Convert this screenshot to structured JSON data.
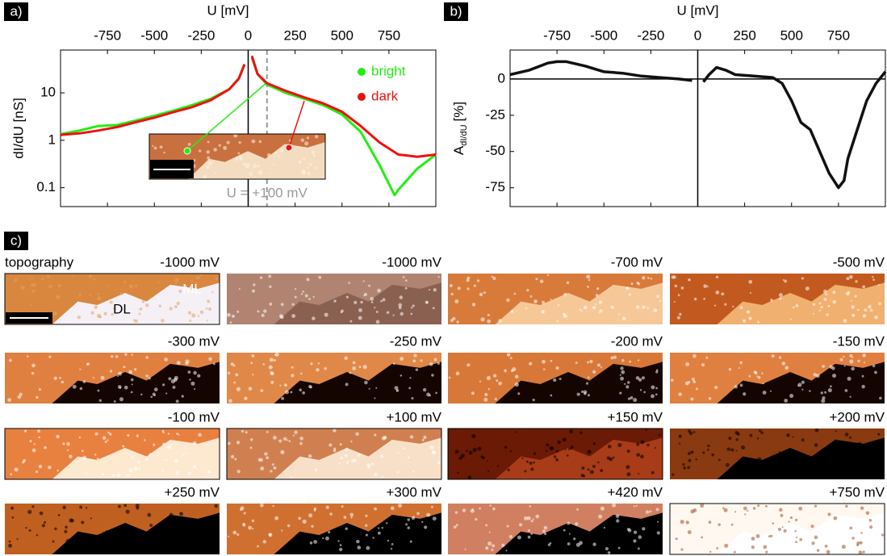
{
  "chart_data": [
    {
      "type": "line",
      "panel_label": "a)",
      "x_label": "U [mV]",
      "y_label": "dI/dU [nS]",
      "y_scale": "log",
      "xlim": [
        -1000,
        1000
      ],
      "xticks": [
        -750,
        -500,
        -250,
        0,
        250,
        500,
        750
      ],
      "ylim": [
        0.04,
        80
      ],
      "yticks": [
        0.1,
        1,
        10
      ],
      "legend": "upper right",
      "reference_x": 100,
      "annotation": "U = +100 mV",
      "series": [
        {
          "name": "bright",
          "color": "#22ee11",
          "x": [
            -1000,
            -900,
            -800,
            -700,
            -600,
            -500,
            -400,
            -300,
            -200,
            -100,
            -50,
            -20,
            0,
            20,
            50,
            100,
            200,
            300,
            400,
            500,
            600,
            700,
            750,
            780,
            800,
            900,
            1000
          ],
          "values": [
            1.35,
            1.6,
            2.0,
            2.1,
            2.6,
            3.3,
            4.2,
            5.5,
            7.5,
            12,
            20,
            40,
            null,
            55,
            25,
            15,
            10,
            7.5,
            5.5,
            3.5,
            1.5,
            0.3,
            0.12,
            0.07,
            0.09,
            0.25,
            0.5
          ]
        },
        {
          "name": "dark",
          "color": "#ee1111",
          "x": [
            -1000,
            -900,
            -800,
            -700,
            -600,
            -500,
            -400,
            -300,
            -200,
            -100,
            -50,
            -20,
            0,
            20,
            50,
            100,
            200,
            300,
            400,
            500,
            600,
            700,
            800,
            900,
            1000
          ],
          "values": [
            1.3,
            1.4,
            1.6,
            1.9,
            2.4,
            3.0,
            3.9,
            5,
            7,
            12,
            20,
            40,
            null,
            60,
            25,
            16,
            11,
            8,
            6,
            4,
            2,
            0.9,
            0.5,
            0.45,
            0.5
          ]
        }
      ]
    },
    {
      "type": "line",
      "panel_label": "b)",
      "x_label": "U [mV]",
      "y_label": "A",
      "y_label_subscript": "dI/dU",
      "y_label_unit": "[%]",
      "xlim": [
        -1000,
        1000
      ],
      "xticks": [
        -750,
        -500,
        -250,
        0,
        250,
        500,
        750
      ],
      "ylim": [
        -88,
        20
      ],
      "yticks": [
        0,
        -25,
        -50,
        -75
      ],
      "series": [
        {
          "color": "#111111",
          "x": [
            -1000,
            -900,
            -800,
            -750,
            -700,
            -600,
            -500,
            -400,
            -300,
            -200,
            -100,
            -30,
            0,
            30,
            60,
            100,
            150,
            200,
            300,
            400,
            450,
            500,
            550,
            600,
            650,
            700,
            750,
            780,
            800,
            850,
            900,
            950,
            1000
          ],
          "values": [
            3,
            6,
            11,
            12,
            12,
            9,
            5,
            4,
            2,
            1,
            0,
            -1,
            null,
            -2,
            3,
            8,
            6,
            3,
            2,
            1,
            -3,
            -15,
            -30,
            -35,
            -50,
            -65,
            -75,
            -70,
            -55,
            -35,
            -15,
            -3,
            5
          ]
        }
      ]
    }
  ],
  "panels": {
    "label": "c)",
    "items": [
      {
        "title": "topography",
        "voltage": "-1000 mV",
        "annotations": [
          "ML",
          "DL"
        ]
      },
      {
        "voltage": "-1000 mV"
      },
      {
        "voltage": "-700 mV"
      },
      {
        "voltage": "-500 mV"
      },
      {
        "voltage": "-300 mV"
      },
      {
        "voltage": "-250 mV"
      },
      {
        "voltage": "-200 mV"
      },
      {
        "voltage": "-150 mV"
      },
      {
        "voltage": "-100 mV"
      },
      {
        "voltage": "+100 mV"
      },
      {
        "voltage": "+150 mV"
      },
      {
        "voltage": "+200 mV"
      },
      {
        "voltage": "+250 mV"
      },
      {
        "voltage": "+300 mV"
      },
      {
        "voltage": "+420 mV"
      },
      {
        "voltage": "+750 mV"
      }
    ]
  }
}
